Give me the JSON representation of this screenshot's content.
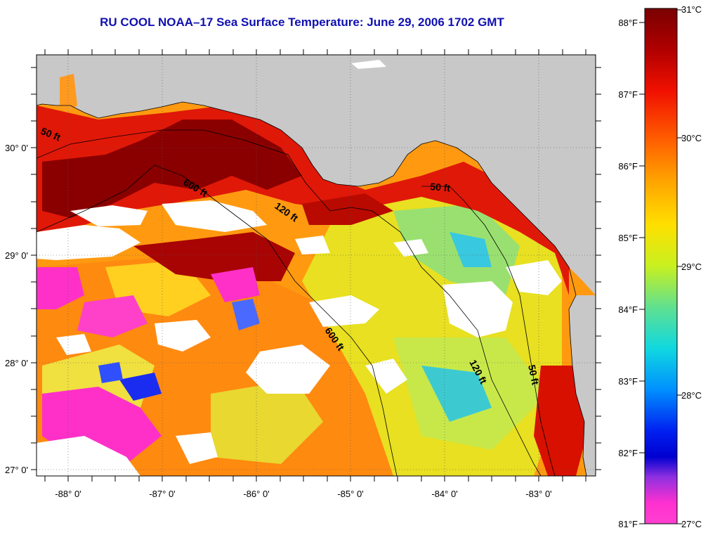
{
  "title": "RU COOL  NOAA–17  Sea Surface Temperature:  June 29, 2006 1702 GMT",
  "axes": {
    "lon_labels": [
      "-88° 0'",
      "-87° 0'",
      "-86° 0'",
      "-85° 0'",
      "-84° 0'",
      "-83° 0'"
    ],
    "lat_labels": [
      "30° 0'",
      "29° 0'",
      "28° 0'",
      "27° 0'"
    ]
  },
  "isobaths": {
    "a": "50 ft",
    "b": "600 ft",
    "c": "120 ft",
    "d": "50 ft",
    "e": "600 ft",
    "f": "120 ft",
    "g": "50 ft"
  },
  "colorbar": {
    "fahrenheit": [
      "88°F",
      "87°F",
      "86°F",
      "85°F",
      "84°F",
      "83°F",
      "82°F",
      "81°F"
    ],
    "celsius": [
      "31°C",
      "30°C",
      "29°C",
      "28°C",
      "27°C"
    ],
    "stops": [
      "#7a0000",
      "#c80000",
      "#ff2a00",
      "#ff8c00",
      "#ffd400",
      "#e6f000",
      "#a8e85a",
      "#3cd2b4",
      "#00d2f0",
      "#0078ff",
      "#0000e6",
      "#8a2be2",
      "#ff33cc",
      "#ff33cc"
    ]
  },
  "palette": {
    "land": "#c8c8c8",
    "cloud": "#ffffff",
    "title": "#1010b0"
  }
}
